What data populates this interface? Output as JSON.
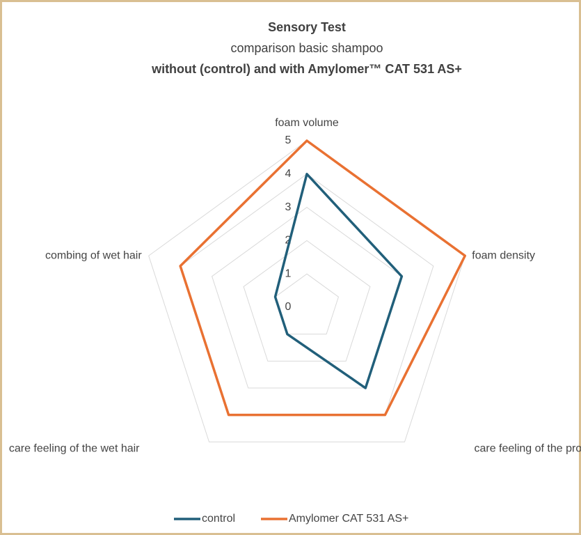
{
  "chart_data": {
    "type": "radar",
    "title": "Sensory Test",
    "subtitle": [
      "comparison basic shampoo",
      "without (control) and with Amylomer™ CAT 531 AS+"
    ],
    "categories": [
      "foam volume",
      "foam density",
      "care feeling of the product",
      "care feeling of the wet hair",
      "combing of wet hair"
    ],
    "series": [
      {
        "name": "control",
        "color": "#215f7a",
        "values": [
          4,
          3,
          3,
          1,
          1
        ]
      },
      {
        "name": "Amylomer CAT 531 AS+",
        "color": "#e97132",
        "values": [
          5,
          5,
          4,
          4,
          4
        ]
      }
    ],
    "rlim": [
      0,
      5
    ],
    "rticks": [
      0,
      1,
      2,
      3,
      4,
      5
    ],
    "grid": true,
    "legend": "bottom"
  }
}
